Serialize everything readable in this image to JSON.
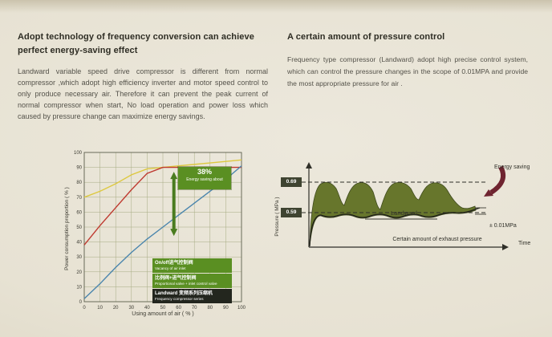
{
  "colors": {
    "background": "#e9e5d8",
    "heading": "#2e2d24",
    "body_text": "#54524a",
    "band_fill": "#67762c",
    "ribbon_red": "#6f2430",
    "legend_green": "#5a8f22",
    "legend_dark": "#23261e"
  },
  "left": {
    "heading": "Adopt technology of frequency conversion can achieve perfect energy-saving effect",
    "body": "Landward variable speed drive compressor is different from normal compressor ,which adopt high efficiency inverter and motor speed control to only produce necessary air. Therefore it can prevent the peak current of normal compressor when start, No load operation and power loss which caused by pressure change can maximize energy savings."
  },
  "right": {
    "heading": "A certain amount of pressure control",
    "body": "Frequency type compressor (Landward) adopt high precise control system, which can control the pressure changes in the scope of 0.01MPA and provide the most appropriate pressure for air ."
  },
  "chart_data": [
    {
      "type": "line",
      "title": "",
      "xlabel": "Using amount of air ( % )",
      "ylabel": "Power consumption proportion ( % )",
      "xlim": [
        0,
        100
      ],
      "ylim": [
        0,
        100
      ],
      "xstep": 10,
      "ystep": 10,
      "grid": true,
      "x": [
        0,
        10,
        20,
        30,
        40,
        50,
        60,
        70,
        80,
        90,
        100
      ],
      "series": [
        {
          "name": "On/off air inlet valve",
          "color": "#ddc83f",
          "values": [
            70,
            74,
            79,
            85,
            89,
            90,
            91,
            92,
            93,
            94,
            95
          ]
        },
        {
          "name": "Proportional valve + inlet control valve",
          "color": "#bf3a30",
          "values": [
            38,
            51,
            63,
            75,
            86,
            90,
            90,
            90,
            90,
            90,
            90
          ]
        },
        {
          "name": "Landward frequency compressor series",
          "color": "#4a85ad",
          "values": [
            2,
            12,
            23,
            33,
            42,
            50,
            58,
            66,
            74,
            82,
            91
          ]
        }
      ],
      "annotation": {
        "x": 57,
        "from": 44,
        "to": 87,
        "label_percent": "38%",
        "label_text": "Energy saving about",
        "color": "#4a7c1f"
      },
      "legend": [
        {
          "line1": "On/off进气控制阀",
          "line2": "Vacancy of air inlet",
          "bg": "#5a8f22"
        },
        {
          "line1": "比例阀+进气控制阀",
          "line2": "Proportional valve + inlet control valve",
          "bg": "#5a8f22"
        },
        {
          "line1": "Landward 变频系列压缩机",
          "line2": "Frequency compressor series",
          "bg": "#23261e"
        }
      ]
    },
    {
      "type": "area",
      "ylabel": "Pressure ( MPa )",
      "xlabel": "Time",
      "levels": {
        "upper": "0.69",
        "lower": "0.59"
      },
      "band_label": "Landward",
      "annotations": {
        "energy": "Energy saving",
        "tolerance": "± 0.01MPa",
        "caption": "Certain amount of exhaust pressure"
      }
    }
  ]
}
